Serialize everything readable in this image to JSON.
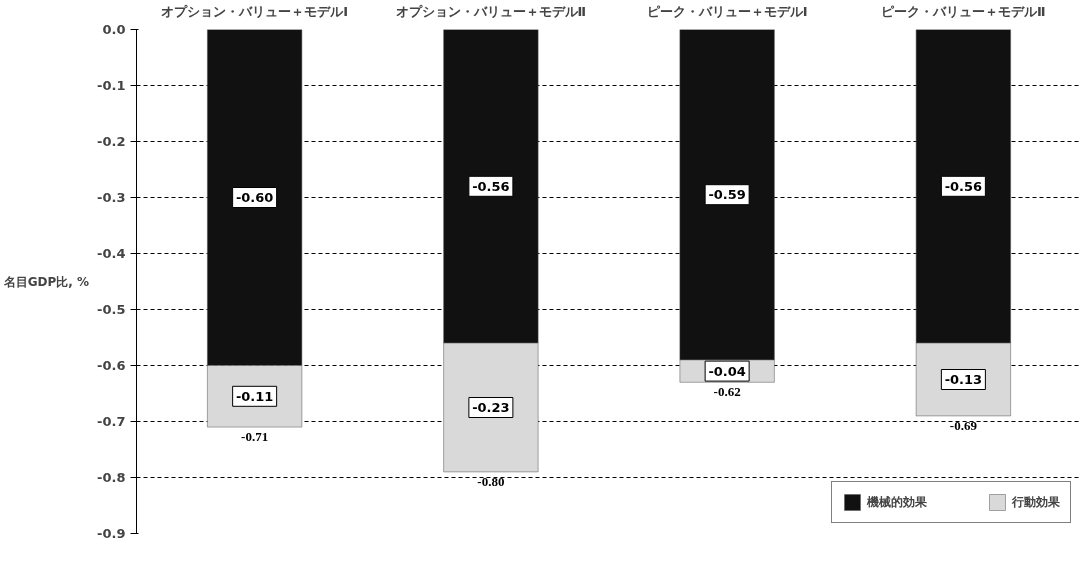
{
  "chart_data": {
    "type": "bar",
    "stacked": true,
    "ylabel": "名目GDP比, %",
    "categories": [
      "オプション・バリュー＋モデルⅠ",
      "オプション・バリュー＋モデルⅡ",
      "ピーク・バリュー＋モデルⅠ",
      "ピーク・バリュー＋モデルⅡ"
    ],
    "series": [
      {
        "name": "機械的効果",
        "color": "#111111",
        "values": [
          -0.6,
          -0.56,
          -0.59,
          -0.56
        ],
        "value_labels": [
          "-0.60",
          "-0.56",
          "-0.59",
          "-0.56"
        ]
      },
      {
        "name": "行動効果",
        "color": "#d9d9d9",
        "values": [
          -0.11,
          -0.23,
          -0.04,
          -0.13
        ],
        "value_labels": [
          "-0.11",
          "-0.23",
          "-0.04",
          "-0.13"
        ]
      }
    ],
    "totals": [
      "-0.71",
      "-0.80",
      "-0.62",
      "-0.69"
    ],
    "ylim": [
      -0.9,
      0.0
    ],
    "yticks": [
      {
        "value": 0.0,
        "label": "0.0"
      },
      -0.1,
      -0.2,
      -0.3,
      -0.4,
      -0.5,
      -0.6,
      -0.7,
      -0.8,
      -0.9
    ],
    "grid": "y",
    "legend": "bottom right"
  }
}
